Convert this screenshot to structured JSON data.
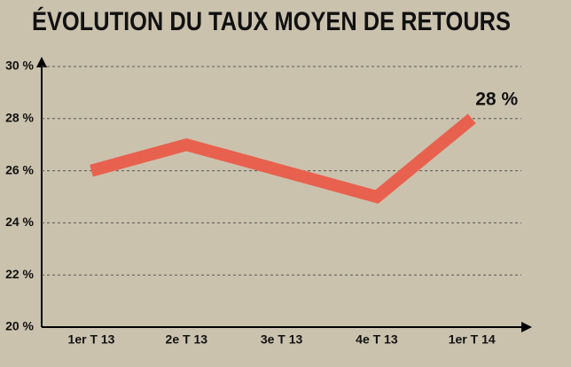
{
  "chart_data": {
    "type": "line",
    "title": "ÉVOLUTION DU TAUX MOYEN DE RETOURS",
    "categories": [
      "1er T 13",
      "2e T 13",
      "3e T 13",
      "4e T 13",
      "1er T 14"
    ],
    "values": [
      26,
      27,
      26,
      25,
      28
    ],
    "value_labels": [
      null,
      null,
      null,
      null,
      "28 %"
    ],
    "color": "#e8614e",
    "ylim": [
      20,
      30
    ],
    "yticks": [
      {
        "value": 20,
        "label": "20 %"
      },
      {
        "value": 22,
        "label": "22 %"
      },
      {
        "value": 24,
        "label": "24 %"
      },
      {
        "value": 26,
        "label": "26 %"
      },
      {
        "value": 28,
        "label": "28 %"
      },
      {
        "value": 30,
        "label": "30 %"
      }
    ],
    "grid": true
  }
}
